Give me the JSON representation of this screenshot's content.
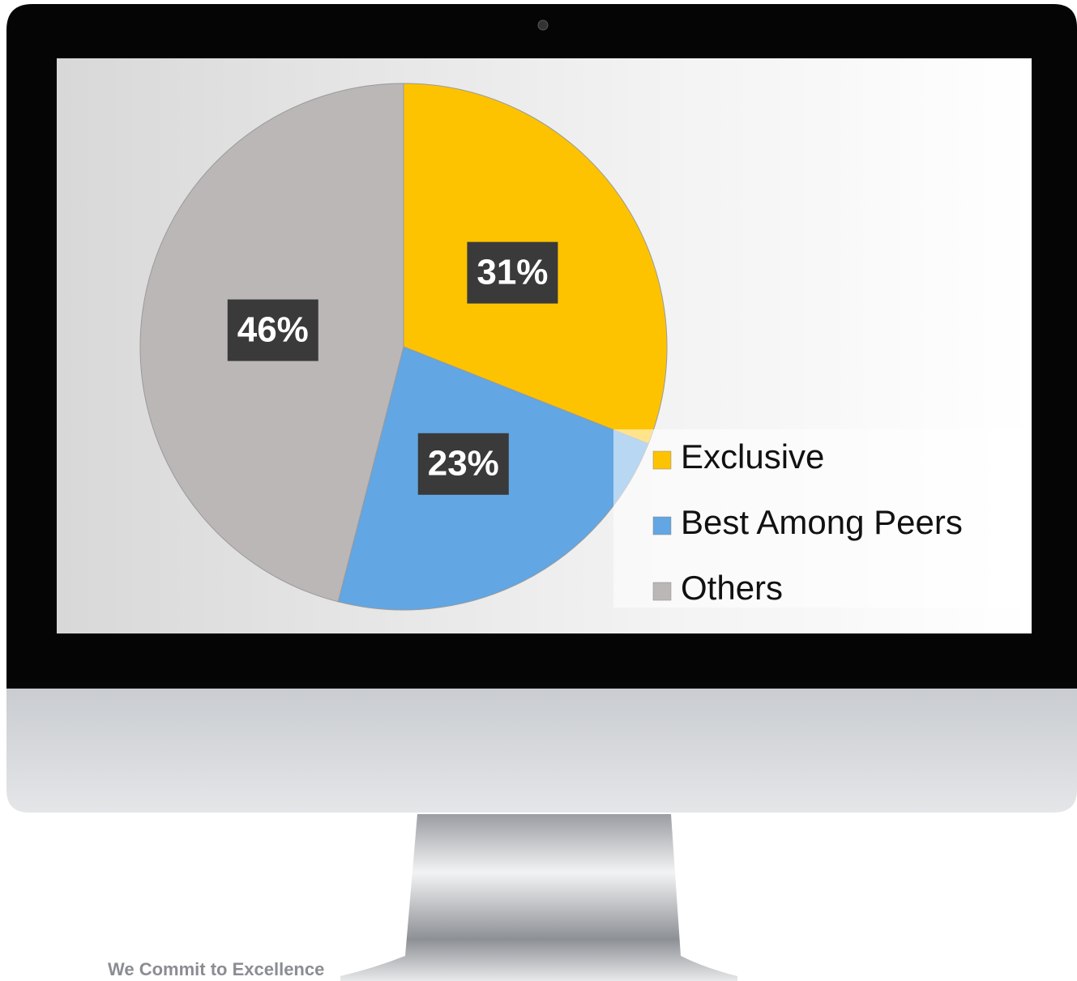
{
  "chart_data": {
    "type": "pie",
    "categories": [
      "Exclusive",
      "Best Among Peers",
      "Others"
    ],
    "values": [
      31,
      23,
      46
    ],
    "value_labels": [
      "31%",
      "23%",
      "46%"
    ],
    "colors": [
      "#fec300",
      "#62a6e3",
      "#bbb7b7"
    ]
  },
  "footer": "We Commit to Excellence"
}
